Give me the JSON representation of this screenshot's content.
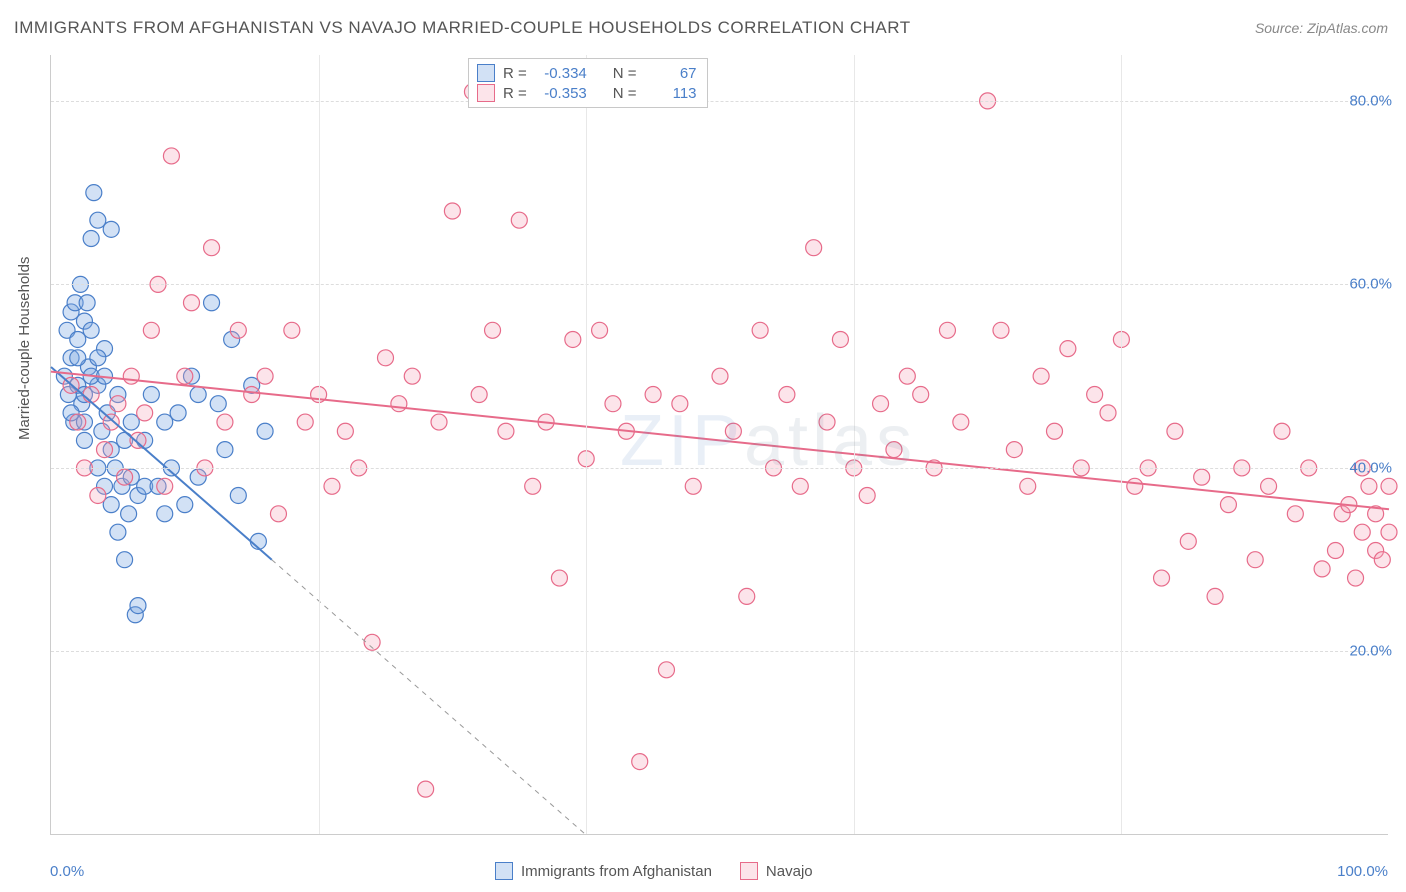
{
  "title": "IMMIGRANTS FROM AFGHANISTAN VS NAVAJO MARRIED-COUPLE HOUSEHOLDS CORRELATION CHART",
  "source_label": "Source:",
  "source_name": "ZipAtlas.com",
  "watermark": "ZIPatlas",
  "y_axis_label": "Married-couple Households",
  "chart": {
    "type": "scatter",
    "xlim": [
      0,
      100
    ],
    "ylim": [
      0,
      85
    ],
    "x_tick_labels": {
      "left": "0.0%",
      "right": "100.0%"
    },
    "y_ticks": [
      {
        "value": 20,
        "label": "20.0%"
      },
      {
        "value": 40,
        "label": "40.0%"
      },
      {
        "value": 60,
        "label": "60.0%"
      },
      {
        "value": 80,
        "label": "80.0%"
      }
    ],
    "x_gridlines": [
      20,
      40,
      60,
      80
    ],
    "background_color": "#ffffff",
    "grid_color": "#dddddd",
    "marker_radius": 8,
    "marker_stroke_width": 1.2,
    "marker_fill_opacity": 0.25,
    "trend_line_width": 2,
    "series": [
      {
        "id": "afghanistan",
        "label": "Immigrants from Afghanistan",
        "color": "#4a7fc9",
        "fill": "rgba(125,170,225,0.35)",
        "r_value": "-0.334",
        "n_value": "67",
        "trend": {
          "x1": 0,
          "y1": 51,
          "x2": 16.5,
          "y2": 30,
          "dash_to_x": 40,
          "dash_to_y": 0
        },
        "points": [
          [
            1.0,
            50
          ],
          [
            1.2,
            55
          ],
          [
            1.3,
            48
          ],
          [
            1.5,
            52
          ],
          [
            1.5,
            57
          ],
          [
            1.7,
            45
          ],
          [
            1.8,
            58
          ],
          [
            2.0,
            54
          ],
          [
            2.0,
            49
          ],
          [
            2.2,
            60
          ],
          [
            2.3,
            47
          ],
          [
            2.5,
            56
          ],
          [
            2.5,
            43
          ],
          [
            2.7,
            58
          ],
          [
            2.8,
            51
          ],
          [
            3.0,
            55
          ],
          [
            3.0,
            65
          ],
          [
            3.2,
            70
          ],
          [
            3.5,
            49
          ],
          [
            3.5,
            40
          ],
          [
            3.5,
            67
          ],
          [
            3.8,
            44
          ],
          [
            4.0,
            53
          ],
          [
            4.0,
            38
          ],
          [
            4.2,
            46
          ],
          [
            4.5,
            42
          ],
          [
            4.5,
            36
          ],
          [
            4.5,
            66
          ],
          [
            4.8,
            40
          ],
          [
            5.0,
            48
          ],
          [
            5.0,
            33
          ],
          [
            5.3,
            38
          ],
          [
            5.5,
            43
          ],
          [
            5.5,
            30
          ],
          [
            5.8,
            35
          ],
          [
            6.0,
            39
          ],
          [
            6.0,
            45
          ],
          [
            6.3,
            24
          ],
          [
            6.5,
            37
          ],
          [
            6.5,
            25
          ],
          [
            7.0,
            43
          ],
          [
            7.0,
            38
          ],
          [
            7.5,
            48
          ],
          [
            8.0,
            38
          ],
          [
            8.5,
            45
          ],
          [
            8.5,
            35
          ],
          [
            9.0,
            40
          ],
          [
            9.5,
            46
          ],
          [
            10.0,
            36
          ],
          [
            10.5,
            50
          ],
          [
            11.0,
            39
          ],
          [
            11.0,
            48
          ],
          [
            12.0,
            58
          ],
          [
            12.5,
            47
          ],
          [
            13.0,
            42
          ],
          [
            13.5,
            54
          ],
          [
            14.0,
            37
          ],
          [
            15.0,
            49
          ],
          [
            15.5,
            32
          ],
          [
            16.0,
            44
          ],
          [
            3.0,
            50
          ],
          [
            4.0,
            50
          ],
          [
            2.0,
            52
          ],
          [
            1.5,
            46
          ],
          [
            2.5,
            48
          ],
          [
            3.5,
            52
          ],
          [
            2.5,
            45
          ]
        ]
      },
      {
        "id": "navajo",
        "label": "Navajo",
        "color": "#e76b8a",
        "fill": "rgba(245,165,185,0.3)",
        "r_value": "-0.353",
        "n_value": "113",
        "trend": {
          "x1": 0,
          "y1": 50.5,
          "x2": 100,
          "y2": 35.5
        },
        "points": [
          [
            1.5,
            49
          ],
          [
            2.0,
            45
          ],
          [
            2.5,
            40
          ],
          [
            3.0,
            48
          ],
          [
            3.5,
            37
          ],
          [
            4.0,
            42
          ],
          [
            4.5,
            45
          ],
          [
            5.0,
            47
          ],
          [
            5.5,
            39
          ],
          [
            6.0,
            50
          ],
          [
            6.5,
            43
          ],
          [
            7.0,
            46
          ],
          [
            7.5,
            55
          ],
          [
            8.0,
            60
          ],
          [
            8.5,
            38
          ],
          [
            9.0,
            74
          ],
          [
            10.0,
            50
          ],
          [
            10.5,
            58
          ],
          [
            11.5,
            40
          ],
          [
            12.0,
            64
          ],
          [
            13.0,
            45
          ],
          [
            14.0,
            55
          ],
          [
            15.0,
            48
          ],
          [
            16.0,
            50
          ],
          [
            17.0,
            35
          ],
          [
            18.0,
            55
          ],
          [
            19.0,
            45
          ],
          [
            20.0,
            48
          ],
          [
            21.0,
            38
          ],
          [
            22.0,
            44
          ],
          [
            23.0,
            40
          ],
          [
            24.0,
            21
          ],
          [
            25.0,
            52
          ],
          [
            26.0,
            47
          ],
          [
            27.0,
            50
          ],
          [
            28.0,
            5
          ],
          [
            29.0,
            45
          ],
          [
            30.0,
            68
          ],
          [
            31.5,
            81
          ],
          [
            32.0,
            48
          ],
          [
            33.0,
            55
          ],
          [
            34.0,
            44
          ],
          [
            35.0,
            67
          ],
          [
            36.0,
            38
          ],
          [
            37.0,
            45
          ],
          [
            38.0,
            28
          ],
          [
            39.0,
            54
          ],
          [
            40.0,
            41
          ],
          [
            41.0,
            55
          ],
          [
            42.0,
            47
          ],
          [
            43.0,
            44
          ],
          [
            44.0,
            8
          ],
          [
            45.0,
            48
          ],
          [
            46.0,
            18
          ],
          [
            47.0,
            47
          ],
          [
            48.0,
            38
          ],
          [
            50.0,
            50
          ],
          [
            51.0,
            44
          ],
          [
            52.0,
            26
          ],
          [
            53.0,
            55
          ],
          [
            54.0,
            40
          ],
          [
            55.0,
            48
          ],
          [
            56.0,
            38
          ],
          [
            57.0,
            64
          ],
          [
            58.0,
            45
          ],
          [
            59.0,
            54
          ],
          [
            60.0,
            40
          ],
          [
            61.0,
            37
          ],
          [
            62.0,
            47
          ],
          [
            63.0,
            42
          ],
          [
            64.0,
            50
          ],
          [
            65.0,
            48
          ],
          [
            66.0,
            40
          ],
          [
            67.0,
            55
          ],
          [
            68.0,
            45
          ],
          [
            70.0,
            80
          ],
          [
            71.0,
            55
          ],
          [
            72.0,
            42
          ],
          [
            73.0,
            38
          ],
          [
            74.0,
            50
          ],
          [
            75.0,
            44
          ],
          [
            76.0,
            53
          ],
          [
            77.0,
            40
          ],
          [
            78.0,
            48
          ],
          [
            79.0,
            46
          ],
          [
            80.0,
            54
          ],
          [
            81.0,
            38
          ],
          [
            82.0,
            40
          ],
          [
            83.0,
            28
          ],
          [
            84.0,
            44
          ],
          [
            85.0,
            32
          ],
          [
            86.0,
            39
          ],
          [
            87.0,
            26
          ],
          [
            88.0,
            36
          ],
          [
            89.0,
            40
          ],
          [
            90.0,
            30
          ],
          [
            91.0,
            38
          ],
          [
            92.0,
            44
          ],
          [
            93.0,
            35
          ],
          [
            94.0,
            40
          ],
          [
            95.0,
            29
          ],
          [
            96.0,
            31
          ],
          [
            96.5,
            35
          ],
          [
            97.0,
            36
          ],
          [
            97.5,
            28
          ],
          [
            98.0,
            40
          ],
          [
            98.0,
            33
          ],
          [
            98.5,
            38
          ],
          [
            99.0,
            31
          ],
          [
            99.0,
            35
          ],
          [
            99.5,
            30
          ],
          [
            100.0,
            38
          ],
          [
            100.0,
            33
          ]
        ]
      }
    ]
  },
  "legend_top": {
    "r_label": "R =",
    "n_label": "N ="
  }
}
